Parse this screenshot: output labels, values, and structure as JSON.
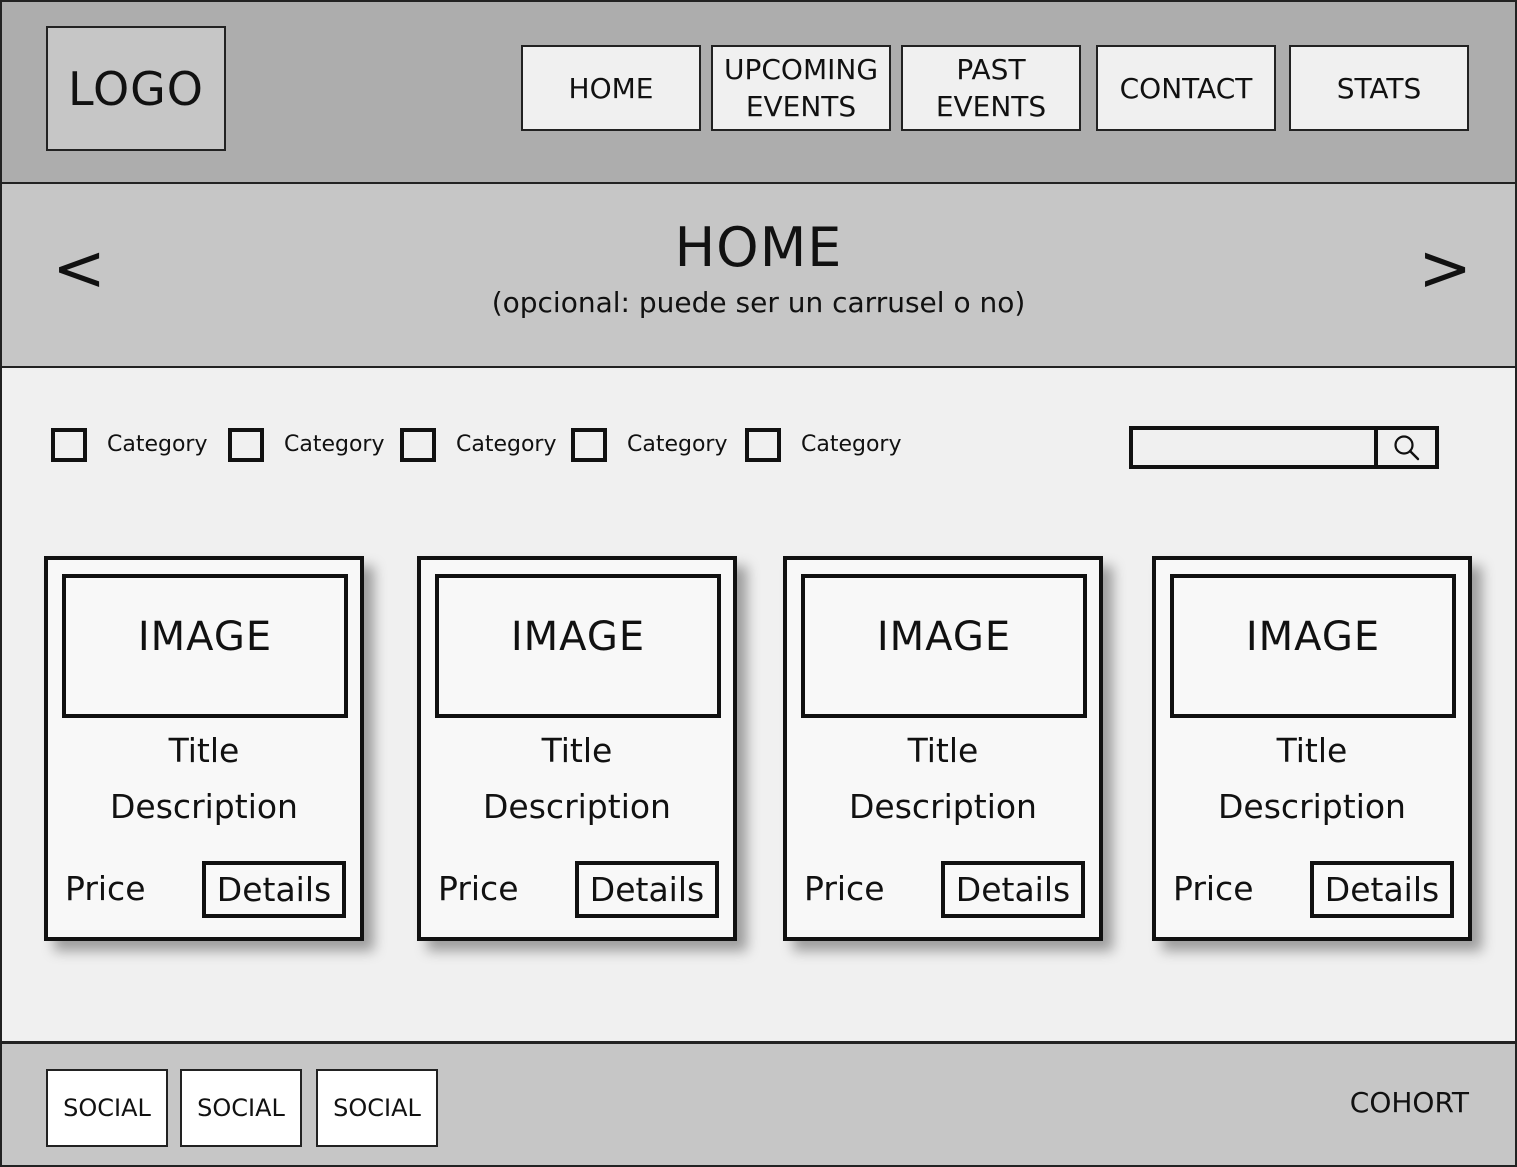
{
  "header": {
    "logo": "LOGO",
    "nav": [
      {
        "label": "HOME"
      },
      {
        "label": "UPCOMING\nEVENTS"
      },
      {
        "label": "PAST\nEVENTS"
      },
      {
        "label": "CONTACT"
      },
      {
        "label": "STATS"
      }
    ]
  },
  "hero": {
    "prev": "<",
    "next": ">",
    "title": "HOME",
    "subtitle": "(opcional: puede ser un carrusel o no)"
  },
  "filters": {
    "categories": [
      {
        "label": "Category",
        "checked": false
      },
      {
        "label": "Category",
        "checked": false
      },
      {
        "label": "Category",
        "checked": false
      },
      {
        "label": "Category",
        "checked": false
      },
      {
        "label": "Category",
        "checked": false
      }
    ],
    "search": {
      "value": "",
      "icon": "search-icon"
    }
  },
  "cards": [
    {
      "image": "IMAGE",
      "title": "Title",
      "description": "Description",
      "price": "Price",
      "details": "Details"
    },
    {
      "image": "IMAGE",
      "title": "Title",
      "description": "Description",
      "price": "Price",
      "details": "Details"
    },
    {
      "image": "IMAGE",
      "title": "Title",
      "description": "Description",
      "price": "Price",
      "details": "Details"
    },
    {
      "image": "IMAGE",
      "title": "Title",
      "description": "Description",
      "price": "Price",
      "details": "Details"
    }
  ],
  "footer": {
    "socials": [
      {
        "label": "SOCIAL"
      },
      {
        "label": "SOCIAL"
      },
      {
        "label": "SOCIAL"
      }
    ],
    "cohort": "COHORT"
  },
  "colors": {
    "header_bg": "#adadad",
    "hero_bg": "#c6c6c6",
    "main_bg": "#f0f0f0",
    "footer_bg": "#c6c6c6",
    "border": "#111111"
  }
}
